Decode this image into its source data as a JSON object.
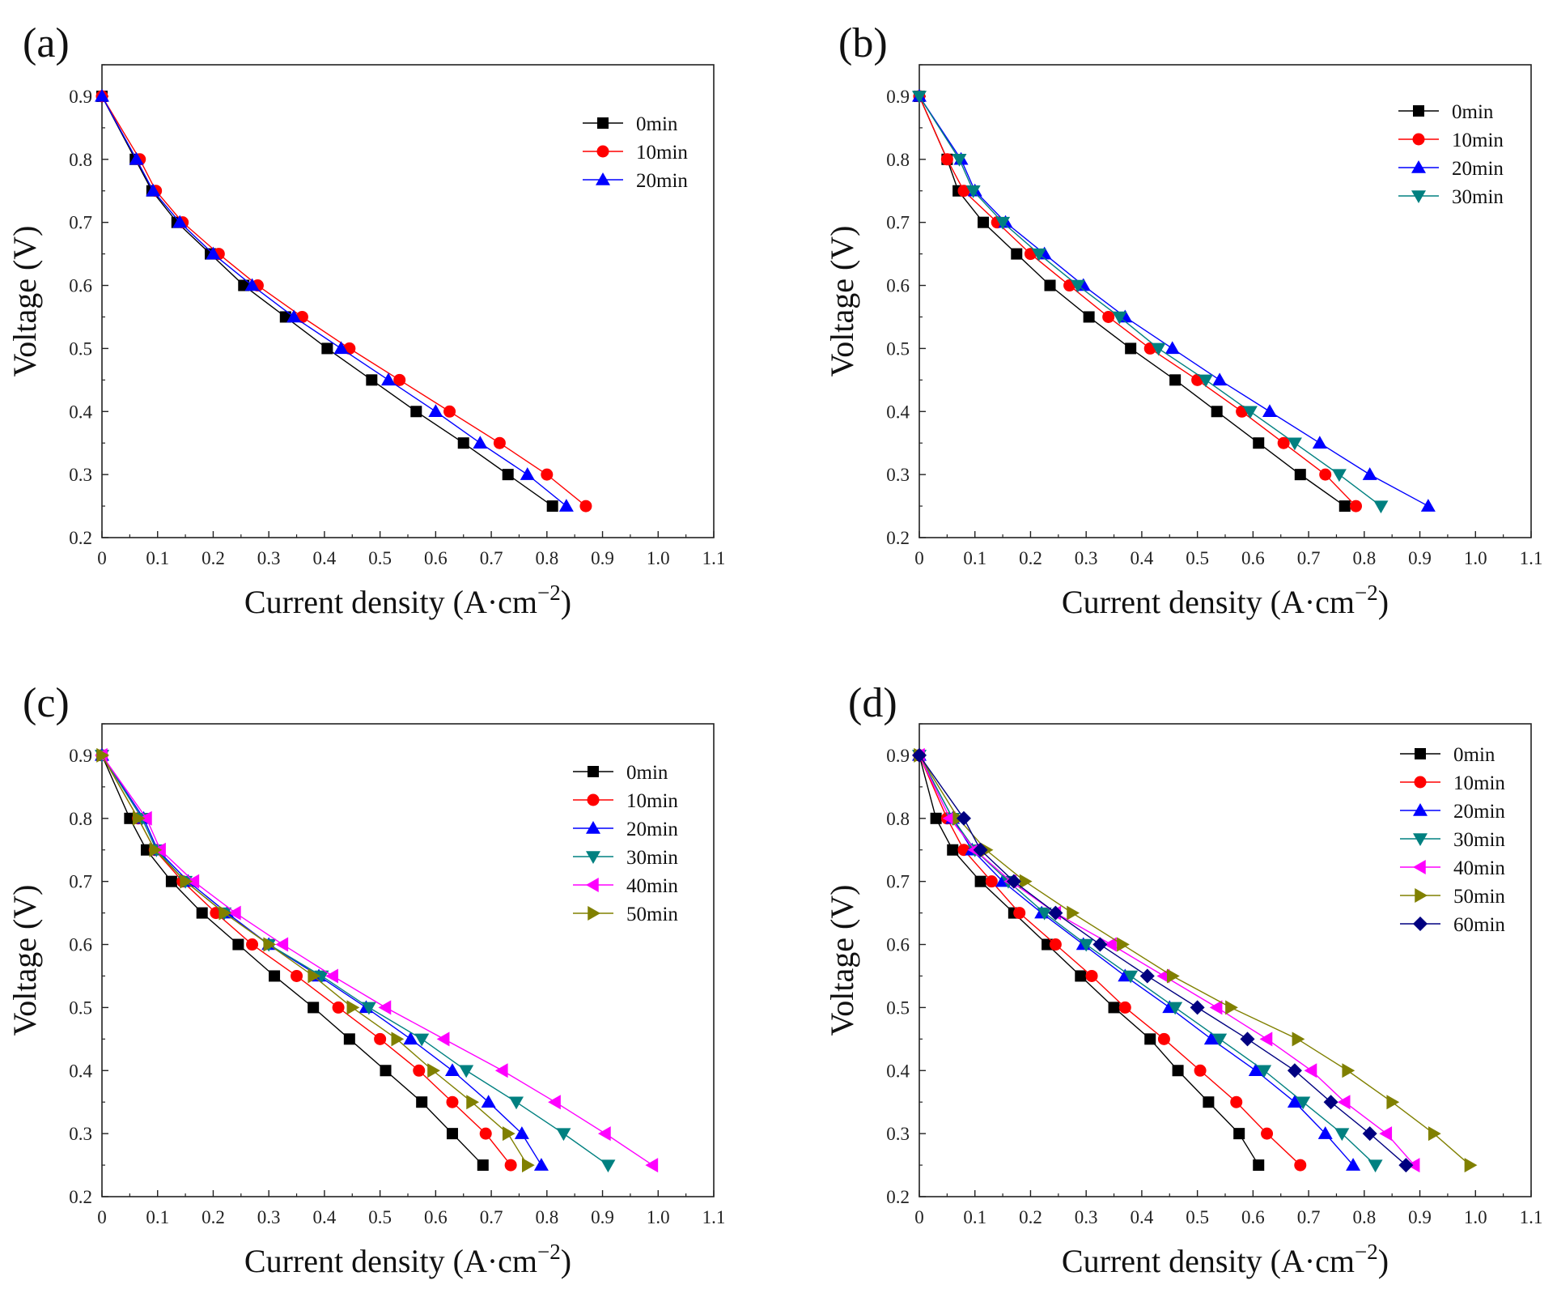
{
  "chart_data": [
    {
      "type": "line",
      "panel_label": "(a)",
      "xlabel": "Current density (A·cm",
      "xlabel_sup": "−2",
      "xlabel_end": ")",
      "ylabel": "Voltage (V)",
      "xlim": [
        0,
        1.1
      ],
      "ylim": [
        0.2,
        0.95
      ],
      "xticks": [
        0,
        0.1,
        0.2,
        0.3,
        0.4,
        0.5,
        0.6,
        0.7,
        0.8,
        0.9,
        1.0,
        1.1
      ],
      "xtick_labels": [
        "0",
        "0.1",
        "0.2",
        "0.3",
        "0.4",
        "0.5",
        "0.6",
        "0.7",
        "0.8",
        "0.9",
        "1.0",
        "1.1"
      ],
      "yticks": [
        0.2,
        0.3,
        0.4,
        0.5,
        0.6,
        0.7,
        0.8,
        0.9
      ],
      "ytick_labels": [
        "0.2",
        "0.3",
        "0.4",
        "0.5",
        "0.6",
        "0.7",
        "0.8",
        "0.9"
      ],
      "voltages": [
        0.9,
        0.8,
        0.75,
        0.7,
        0.65,
        0.6,
        0.55,
        0.5,
        0.45,
        0.4,
        0.35,
        0.3,
        0.25
      ],
      "legend_position": "top-right",
      "series": [
        {
          "name": "0min",
          "color": "#000000",
          "marker": "square",
          "x": [
            0,
            0.06,
            0.09,
            0.135,
            0.195,
            0.255,
            0.33,
            0.405,
            0.485,
            0.565,
            0.65,
            0.73,
            0.81
          ]
        },
        {
          "name": "10min",
          "color": "#ff0000",
          "marker": "circle",
          "x": [
            0,
            0.068,
            0.097,
            0.145,
            0.21,
            0.28,
            0.36,
            0.445,
            0.535,
            0.625,
            0.715,
            0.8,
            0.87
          ]
        },
        {
          "name": "20min",
          "color": "#0000ff",
          "marker": "triangle-up",
          "x": [
            0,
            0.062,
            0.092,
            0.14,
            0.2,
            0.27,
            0.345,
            0.43,
            0.515,
            0.6,
            0.68,
            0.765,
            0.835
          ]
        }
      ]
    },
    {
      "type": "line",
      "panel_label": "(b)",
      "xlabel": "Current density (A·cm",
      "xlabel_sup": "−2",
      "xlabel_end": ")",
      "ylabel": "Voltage (V)",
      "xlim": [
        0,
        1.1
      ],
      "ylim": [
        0.2,
        0.95
      ],
      "xticks": [
        0,
        0.1,
        0.2,
        0.3,
        0.4,
        0.5,
        0.6,
        0.7,
        0.8,
        0.9,
        1.0,
        1.1
      ],
      "xtick_labels": [
        "0",
        "0.1",
        "0.2",
        "0.3",
        "0.4",
        "0.5",
        "0.6",
        "0.7",
        "0.8",
        "0.9",
        "1.0",
        "1.1"
      ],
      "yticks": [
        0.2,
        0.3,
        0.4,
        0.5,
        0.6,
        0.7,
        0.8,
        0.9
      ],
      "ytick_labels": [
        "0.2",
        "0.3",
        "0.4",
        "0.5",
        "0.6",
        "0.7",
        "0.8",
        "0.9"
      ],
      "voltages": [
        0.9,
        0.8,
        0.75,
        0.7,
        0.65,
        0.6,
        0.55,
        0.5,
        0.45,
        0.4,
        0.35,
        0.3,
        0.25
      ],
      "legend_position": "top-right",
      "series": [
        {
          "name": "0min",
          "color": "#000000",
          "marker": "square",
          "x": [
            0,
            0.05,
            0.07,
            0.115,
            0.175,
            0.235,
            0.305,
            0.38,
            0.46,
            0.535,
            0.61,
            0.685,
            0.765
          ]
        },
        {
          "name": "10min",
          "color": "#ff0000",
          "marker": "circle",
          "x": [
            0,
            0.05,
            0.08,
            0.14,
            0.2,
            0.27,
            0.34,
            0.415,
            0.5,
            0.58,
            0.655,
            0.73,
            0.785
          ]
        },
        {
          "name": "20min",
          "color": "#0000ff",
          "marker": "triangle-up",
          "x": [
            0,
            0.075,
            0.1,
            0.155,
            0.225,
            0.295,
            0.37,
            0.455,
            0.54,
            0.63,
            0.72,
            0.81,
            0.915
          ]
        },
        {
          "name": "30min",
          "color": "#008080",
          "marker": "triangle-down",
          "x": [
            0,
            0.072,
            0.097,
            0.15,
            0.215,
            0.285,
            0.36,
            0.43,
            0.515,
            0.595,
            0.675,
            0.755,
            0.83
          ]
        }
      ]
    },
    {
      "type": "line",
      "panel_label": "(c)",
      "xlabel": "Current density (A·cm",
      "xlabel_sup": "−2",
      "xlabel_end": ")",
      "ylabel": "Voltage (V)",
      "xlim": [
        0,
        1.1
      ],
      "ylim": [
        0.2,
        0.95
      ],
      "xticks": [
        0,
        0.1,
        0.2,
        0.3,
        0.4,
        0.5,
        0.6,
        0.7,
        0.8,
        0.9,
        1.0,
        1.1
      ],
      "xtick_labels": [
        "0",
        "0.1",
        "0.2",
        "0.3",
        "0.4",
        "0.5",
        "0.6",
        "0.7",
        "0.8",
        "0.9",
        "1.0",
        "1.1"
      ],
      "yticks": [
        0.2,
        0.3,
        0.4,
        0.5,
        0.6,
        0.7,
        0.8,
        0.9
      ],
      "ytick_labels": [
        "0.2",
        "0.3",
        "0.4",
        "0.5",
        "0.6",
        "0.7",
        "0.8",
        "0.9"
      ],
      "voltages": [
        0.9,
        0.8,
        0.75,
        0.7,
        0.65,
        0.6,
        0.55,
        0.5,
        0.45,
        0.4,
        0.35,
        0.3,
        0.25
      ],
      "legend_position": "top-right",
      "series": [
        {
          "name": "0min",
          "color": "#000000",
          "marker": "square",
          "x": [
            0,
            0.05,
            0.08,
            0.125,
            0.18,
            0.245,
            0.31,
            0.38,
            0.445,
            0.51,
            0.575,
            0.63,
            0.685
          ]
        },
        {
          "name": "10min",
          "color": "#ff0000",
          "marker": "circle",
          "x": [
            0,
            0.065,
            0.095,
            0.145,
            0.205,
            0.27,
            0.35,
            0.425,
            0.5,
            0.57,
            0.63,
            0.69,
            0.735
          ]
        },
        {
          "name": "20min",
          "color": "#0000ff",
          "marker": "triangle-up",
          "x": [
            0,
            0.075,
            0.1,
            0.155,
            0.225,
            0.3,
            0.39,
            0.475,
            0.555,
            0.63,
            0.695,
            0.755,
            0.79
          ]
        },
        {
          "name": "30min",
          "color": "#008080",
          "marker": "triangle-down",
          "x": [
            0,
            0.072,
            0.098,
            0.15,
            0.22,
            0.3,
            0.395,
            0.48,
            0.575,
            0.655,
            0.745,
            0.83,
            0.91
          ]
        },
        {
          "name": "40min",
          "color": "#ff00ff",
          "marker": "triangle-left",
          "x": [
            0,
            0.08,
            0.105,
            0.165,
            0.24,
            0.325,
            0.415,
            0.51,
            0.615,
            0.72,
            0.815,
            0.905,
            0.99
          ]
        },
        {
          "name": "50min",
          "color": "#808000",
          "marker": "triangle-right",
          "x": [
            0,
            0.065,
            0.095,
            0.15,
            0.22,
            0.3,
            0.38,
            0.45,
            0.53,
            0.595,
            0.665,
            0.73,
            0.765
          ]
        }
      ]
    },
    {
      "type": "line",
      "panel_label": "(d)",
      "xlabel": "Current density (A·cm",
      "xlabel_sup": "−2",
      "xlabel_end": ")",
      "ylabel": "Voltage (V)",
      "xlim": [
        0,
        1.1
      ],
      "ylim": [
        0.2,
        0.95
      ],
      "xticks": [
        0,
        0.1,
        0.2,
        0.3,
        0.4,
        0.5,
        0.6,
        0.7,
        0.8,
        0.9,
        1.0,
        1.1
      ],
      "xtick_labels": [
        "0",
        "0.1",
        "0.2",
        "0.3",
        "0.4",
        "0.5",
        "0.6",
        "0.7",
        "0.8",
        "0.9",
        "1.0",
        "1.1"
      ],
      "yticks": [
        0.2,
        0.3,
        0.4,
        0.5,
        0.6,
        0.7,
        0.8,
        0.9
      ],
      "ytick_labels": [
        "0.2",
        "0.3",
        "0.4",
        "0.5",
        "0.6",
        "0.7",
        "0.8",
        "0.9"
      ],
      "voltages": [
        0.9,
        0.8,
        0.75,
        0.7,
        0.65,
        0.6,
        0.55,
        0.5,
        0.45,
        0.4,
        0.35,
        0.3,
        0.25
      ],
      "legend_position": "top-right",
      "series": [
        {
          "name": "0min",
          "color": "#000000",
          "marker": "square",
          "x": [
            0,
            0.03,
            0.06,
            0.11,
            0.17,
            0.23,
            0.29,
            0.35,
            0.415,
            0.465,
            0.52,
            0.575,
            0.61
          ]
        },
        {
          "name": "10min",
          "color": "#ff0000",
          "marker": "circle",
          "x": [
            0,
            0.05,
            0.08,
            0.13,
            0.18,
            0.245,
            0.31,
            0.37,
            0.44,
            0.505,
            0.57,
            0.625,
            0.685
          ]
        },
        {
          "name": "20min",
          "color": "#0000ff",
          "marker": "triangle-up",
          "x": [
            0,
            0.06,
            0.095,
            0.15,
            0.22,
            0.295,
            0.37,
            0.45,
            0.525,
            0.605,
            0.675,
            0.73,
            0.78
          ]
        },
        {
          "name": "30min",
          "color": "#008080",
          "marker": "triangle-down",
          "x": [
            0,
            0.06,
            0.1,
            0.16,
            0.225,
            0.3,
            0.38,
            0.46,
            0.54,
            0.62,
            0.69,
            0.76,
            0.82
          ]
        },
        {
          "name": "40min",
          "color": "#ff00ff",
          "marker": "triangle-left",
          "x": [
            0,
            0.055,
            0.1,
            0.165,
            0.245,
            0.345,
            0.44,
            0.535,
            0.625,
            0.705,
            0.765,
            0.84,
            0.89
          ]
        },
        {
          "name": "50min",
          "color": "#808000",
          "marker": "triangle-right",
          "x": [
            0,
            0.07,
            0.12,
            0.19,
            0.275,
            0.365,
            0.455,
            0.56,
            0.68,
            0.77,
            0.85,
            0.925,
            0.99
          ]
        },
        {
          "name": "60min",
          "color": "#000080",
          "marker": "diamond",
          "x": [
            0,
            0.08,
            0.11,
            0.17,
            0.245,
            0.325,
            0.41,
            0.5,
            0.59,
            0.675,
            0.74,
            0.81,
            0.875
          ]
        }
      ]
    }
  ]
}
